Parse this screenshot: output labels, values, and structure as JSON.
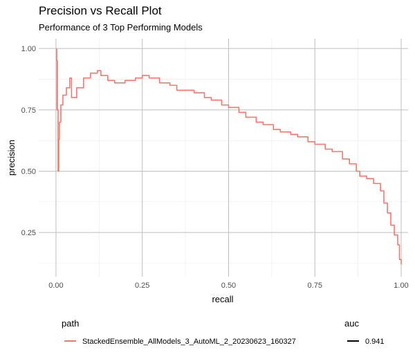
{
  "chart_data": {
    "type": "line",
    "title": "Precision vs Recall Plot",
    "subtitle": "Performance of 3 Top Performing Models",
    "xlabel": "recall",
    "ylabel": "precision",
    "xlim": [
      -0.05,
      1.02
    ],
    "ylim": [
      0.07,
      1.04
    ],
    "x_ticks": [
      0,
      0.25,
      0.5,
      0.75,
      1
    ],
    "x_tick_labels": [
      "0.00",
      "0.25",
      "0.50",
      "0.75",
      "1.00"
    ],
    "y_ticks": [
      0.25,
      0.5,
      0.75,
      1
    ],
    "y_tick_labels": [
      "0.25",
      "0.50",
      "0.75",
      "1.00"
    ],
    "grid": true,
    "legend_position": "bottom",
    "legends": [
      {
        "title": "path",
        "entries": [
          {
            "label": "StackedEnsemble_AllModels_3_AutoML_2_20230623_160327",
            "color": "#f8766d"
          }
        ]
      },
      {
        "title": "auc",
        "entries": [
          {
            "label": "0.941",
            "color": "#000000"
          }
        ]
      }
    ],
    "series": [
      {
        "name": "StackedEnsemble_AllModels_3_AutoML_2_20230623_160327",
        "color": "#f8766d",
        "x": [
          0.002,
          0.002,
          0.003,
          0.004,
          0.004,
          0.006,
          0.008,
          0.01,
          0.014,
          0.02,
          0.03,
          0.04,
          0.045,
          0.047,
          0.06,
          0.08,
          0.1,
          0.12,
          0.13,
          0.15,
          0.17,
          0.2,
          0.23,
          0.25,
          0.27,
          0.3,
          0.33,
          0.35,
          0.38,
          0.4,
          0.43,
          0.45,
          0.48,
          0.5,
          0.53,
          0.55,
          0.58,
          0.6,
          0.63,
          0.65,
          0.68,
          0.7,
          0.73,
          0.75,
          0.78,
          0.8,
          0.83,
          0.85,
          0.87,
          0.88,
          0.9,
          0.92,
          0.94,
          0.95,
          0.96,
          0.97,
          0.98,
          0.99,
          0.995,
          1.0
        ],
        "y": [
          1.0,
          0.95,
          0.75,
          0.95,
          0.75,
          0.5,
          0.63,
          0.7,
          0.77,
          0.81,
          0.84,
          0.88,
          0.8,
          0.8,
          0.84,
          0.88,
          0.9,
          0.91,
          0.89,
          0.87,
          0.86,
          0.87,
          0.88,
          0.89,
          0.88,
          0.86,
          0.85,
          0.83,
          0.83,
          0.82,
          0.8,
          0.79,
          0.77,
          0.76,
          0.74,
          0.72,
          0.7,
          0.69,
          0.67,
          0.66,
          0.65,
          0.64,
          0.62,
          0.61,
          0.59,
          0.58,
          0.55,
          0.53,
          0.5,
          0.48,
          0.47,
          0.45,
          0.42,
          0.37,
          0.33,
          0.28,
          0.24,
          0.2,
          0.14,
          0.12
        ]
      }
    ]
  }
}
